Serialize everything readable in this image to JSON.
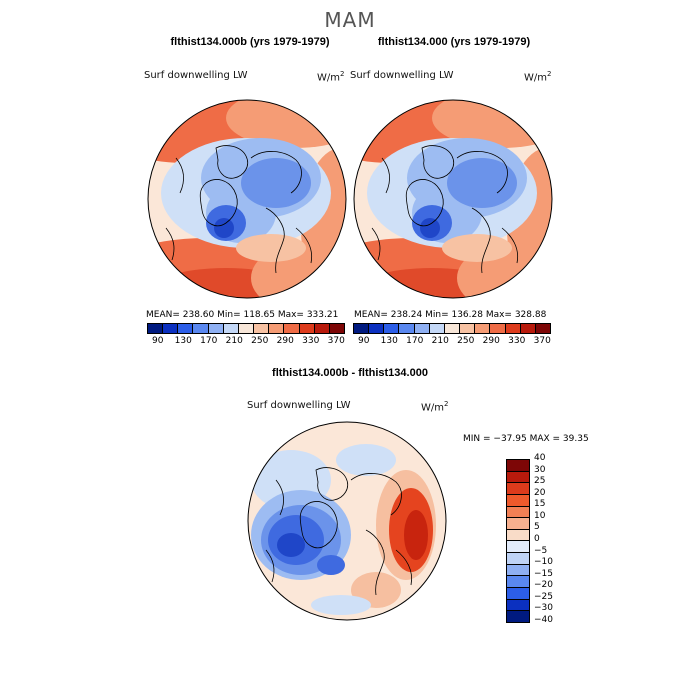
{
  "figure": {
    "title": "MAM"
  },
  "panels": {
    "left": {
      "title": "flthist134.000b (yrs 1979-1979)",
      "variable": "Surf downwelling LW",
      "units": "W/m",
      "units_exp": "2",
      "stats": "MEAN= 238.60   Min= 118.65   Max= 333.21"
    },
    "right": {
      "title": "flthist134.000 (yrs 1979-1979)",
      "variable": "Surf downwelling LW",
      "units": "W/m",
      "units_exp": "2",
      "stats": "MEAN= 238.24   Min= 136.28   Max= 328.88"
    },
    "diff": {
      "title": "flthist134.000b - flthist134.000",
      "variable": "Surf downwelling LW",
      "units": "W/m",
      "units_exp": "2",
      "stats": "MIN = −37.95 MAX =  39.35"
    }
  },
  "colorbar_main": {
    "colors": [
      "#001a80",
      "#0b30c0",
      "#2c5ee8",
      "#5a88f0",
      "#8fb0f3",
      "#c4d8f7",
      "#f7e6d8",
      "#f7c2a3",
      "#f59c75",
      "#ef6c46",
      "#dd3b1c",
      "#b81a0c",
      "#7d0606"
    ],
    "ticks": [
      "90",
      "130",
      "170",
      "210",
      "250",
      "290",
      "330",
      "370"
    ]
  },
  "colorbar_diff": {
    "colors": [
      "#7d0606",
      "#b81a0c",
      "#dd3b1c",
      "#ef5a2c",
      "#f28055",
      "#f7b08f",
      "#f9dcc8",
      "#e3ecfb",
      "#bfd3f6",
      "#8fb0f3",
      "#5a88f0",
      "#2c5ee8",
      "#0b30c0",
      "#001a80"
    ],
    "ticks": [
      "40",
      "30",
      "25",
      "20",
      "15",
      "10",
      "5",
      "0",
      "−5",
      "−10",
      "−15",
      "−20",
      "−25",
      "−30",
      "−40"
    ]
  },
  "map_colors": {
    "deep_red": "#e04a2a",
    "red": "#ef6c46",
    "orange": "#f59c75",
    "light_orange": "#f7c2a3",
    "cream": "#fbe7d8",
    "pale_blue": "#cfe0f7",
    "light_blue": "#9dbcf2",
    "mid_blue": "#6b93ea",
    "blue": "#3f6ae0",
    "deep_blue": "#1f46c8",
    "diff_red": "#e5441f",
    "diff_deep_red": "#c8240e",
    "diff_light": "#f6bfa0"
  }
}
